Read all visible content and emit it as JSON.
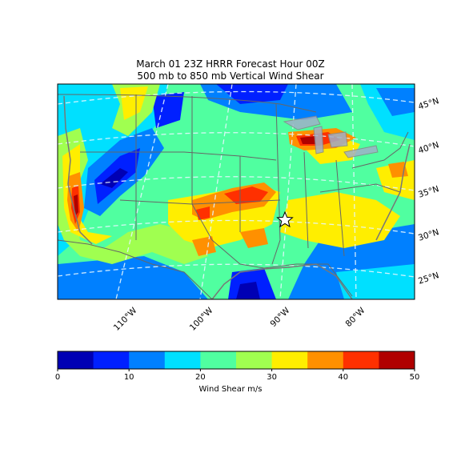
{
  "title": {
    "line1": "March 01 23Z HRRR Forecast Hour 00Z",
    "line2": "500 mb to 850 mb Vertical Wind Shear"
  },
  "lat_labels": [
    "45°N",
    "40°N",
    "35°N",
    "30°N",
    "25°N"
  ],
  "lon_labels": [
    "110°W",
    "100°W",
    "90°W",
    "80°W"
  ],
  "colorbar": {
    "label": "Wind Shear m/s",
    "ticks": [
      "0",
      "10",
      "20",
      "30",
      "40",
      "50"
    ],
    "range": [
      0,
      50
    ],
    "step": 5,
    "colors": [
      "#0000b4",
      "#0020ff",
      "#0080ff",
      "#00e0ff",
      "#50ffa0",
      "#a0ff50",
      "#ffee00",
      "#ff9000",
      "#ff3000",
      "#b00000"
    ]
  },
  "marker": "star-icon"
}
